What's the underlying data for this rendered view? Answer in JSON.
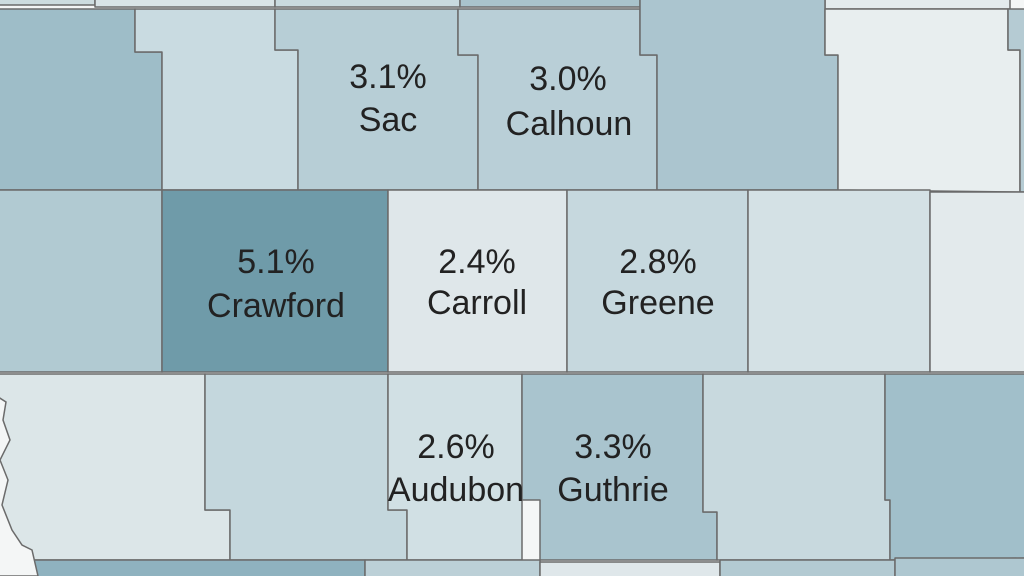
{
  "counties": [
    {
      "name": "Sac",
      "rate": "3.1%"
    },
    {
      "name": "Calhoun",
      "rate": "3.0%"
    },
    {
      "name": "Crawford",
      "rate": "5.1%"
    },
    {
      "name": "Carroll",
      "rate": "2.4%"
    },
    {
      "name": "Greene",
      "rate": "2.8%"
    },
    {
      "name": "Audubon",
      "rate": "2.6%"
    },
    {
      "name": "Guthrie",
      "rate": "3.3%"
    }
  ]
}
